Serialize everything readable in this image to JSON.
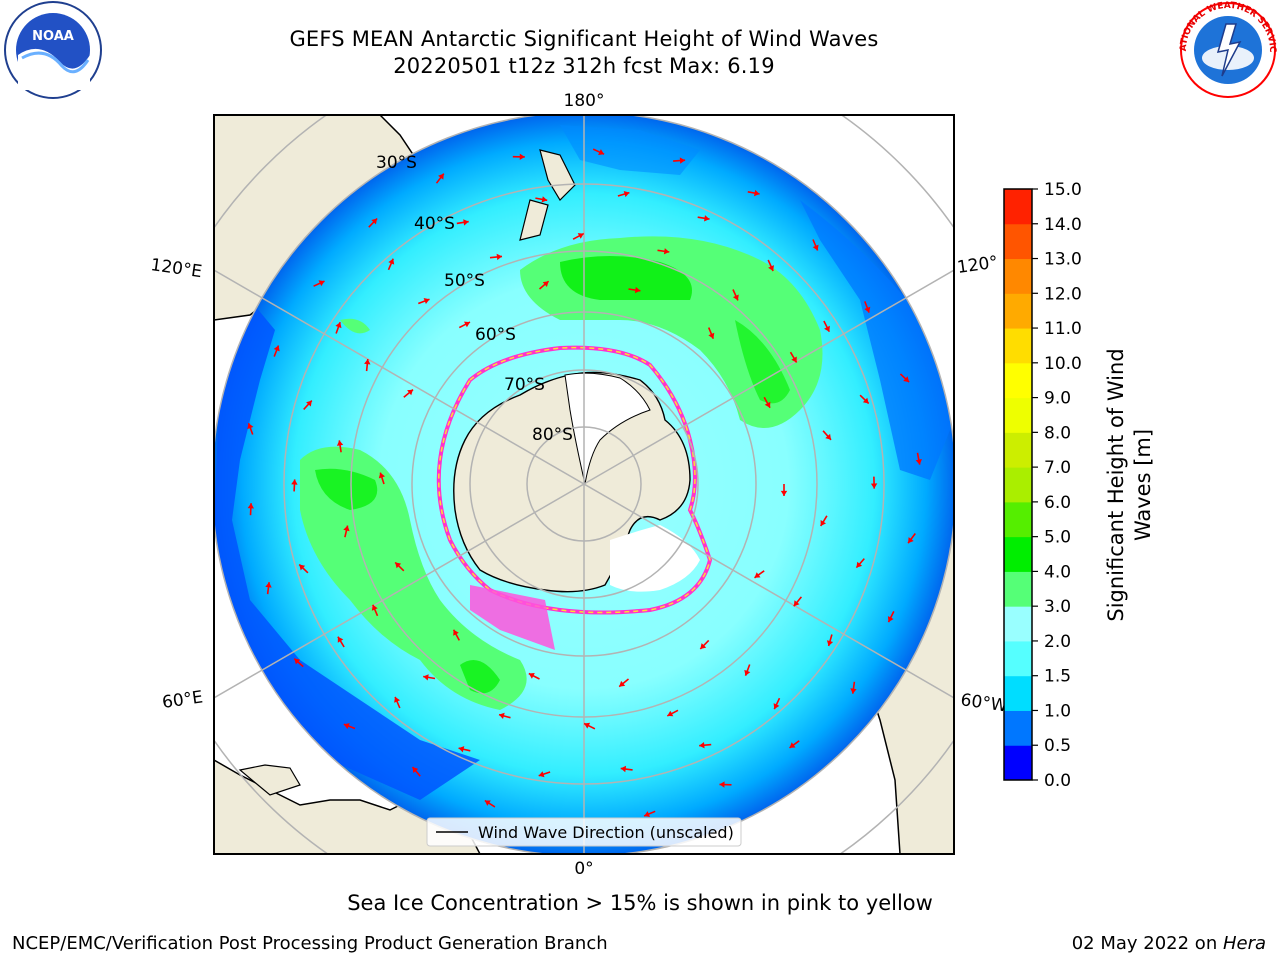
{
  "title": {
    "line1": "GEFS MEAN Antarctic Significant Height of Wind Waves",
    "line2": "20220501 t12z 312h fcst   Max: 6.19"
  },
  "logos": {
    "noara_text": "NOAA",
    "nws_text": "NATIONAL WEATHER SERVICE"
  },
  "map": {
    "projection": "south-polar-stereographic",
    "lon_labels": [
      "180°",
      "120°E",
      "120°",
      "60°E",
      "60°W",
      "0°"
    ],
    "lat_labels": [
      "30°S",
      "40°S",
      "50°S",
      "60°S",
      "70°S",
      "80°S"
    ],
    "legend": "Wind Wave Direction (unscaled)",
    "colors": {
      "land": "#efebd9",
      "ocean_deep": "#0046ff",
      "ice": "#ffffff",
      "ice_edge": "#ff33cc",
      "arrow": "#ff0000",
      "grid": "#b3b3b3"
    }
  },
  "colorbar": {
    "label_line1": "Significant Height of Wind",
    "label_line2": "Waves [m]",
    "ticks": [
      "0.0",
      "0.5",
      "1.0",
      "1.5",
      "2.0",
      "3.0",
      "4.0",
      "5.0",
      "6.0",
      "7.0",
      "8.0",
      "9.0",
      "10.0",
      "11.0",
      "12.0",
      "13.0",
      "14.0",
      "15.0"
    ],
    "colors": [
      "#0000ff",
      "#0077ff",
      "#00ddff",
      "#55ffff",
      "#99ffff",
      "#55ff77",
      "#00ee00",
      "#55ee00",
      "#aaee00",
      "#ccee00",
      "#eeff00",
      "#ffff00",
      "#ffdd00",
      "#ffaa00",
      "#ff8800",
      "#ff5500",
      "#ff2200"
    ]
  },
  "note": "Sea Ice Concentration > 15% is shown in pink to yellow",
  "footer": {
    "left": "NCEP/EMC/Verification Post Processing Product Generation Branch",
    "date": "02 May 2022 on ",
    "machine": "Hera"
  }
}
